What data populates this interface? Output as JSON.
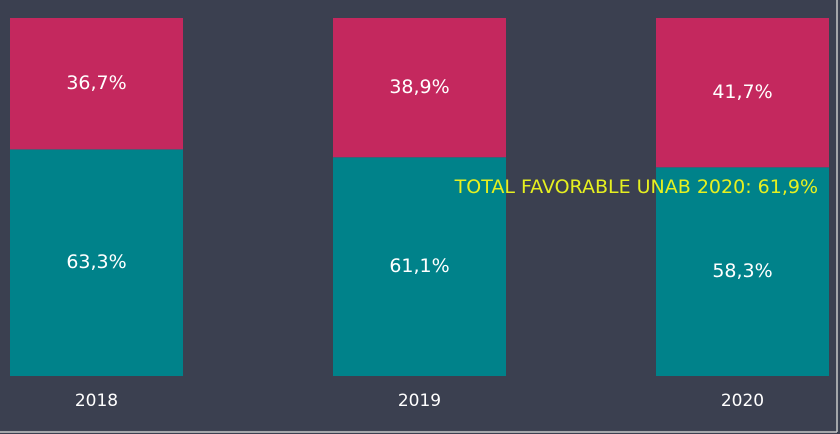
{
  "chart_data": {
    "type": "stacked_bar",
    "categories": [
      "2018",
      "2019",
      "2020"
    ],
    "series": [
      {
        "color": "#00828a",
        "values": [
          63.3,
          61.1,
          58.3
        ],
        "value_labels": [
          "63,3%",
          "61,1%",
          "58,3%"
        ]
      },
      {
        "color": "#c4285e",
        "values": [
          36.7,
          38.9,
          41.7
        ],
        "value_labels": [
          "36,7%",
          "38,9%",
          "41,7%"
        ]
      }
    ],
    "ylim": [
      0,
      100
    ],
    "annotation": {
      "text": "TOTAL FAVORABLE UNAB 2020: 61,9%",
      "value": 61.9,
      "color": "#e6f020"
    }
  }
}
